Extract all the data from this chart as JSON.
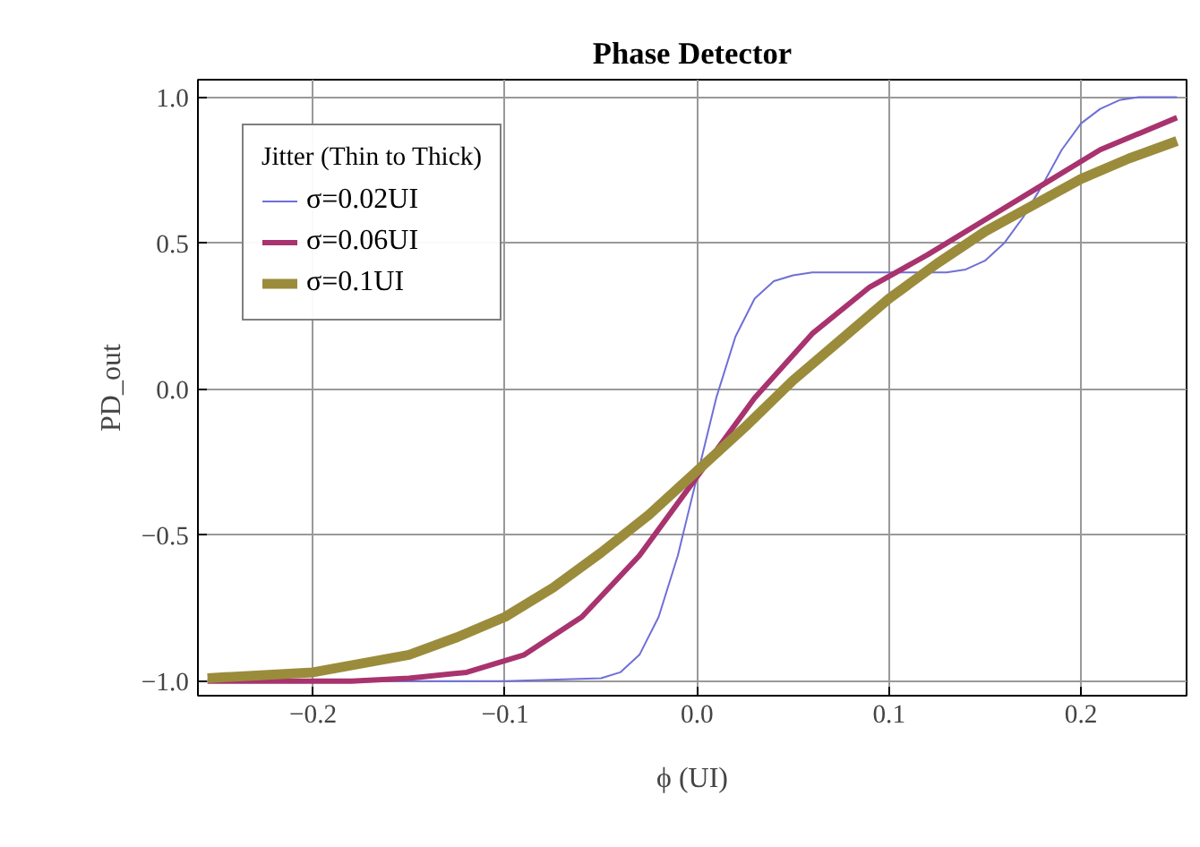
{
  "chart_data": {
    "type": "line",
    "title": "Phase Detector",
    "xlabel": "ϕ (UI)",
    "ylabel": "PD_out",
    "legend_title": "Jitter (Thin to Thick)",
    "xlim": [
      -0.26,
      0.255
    ],
    "ylim": [
      -1.05,
      1.06
    ],
    "xticks": [
      {
        "value": -0.2,
        "label": "−0.2"
      },
      {
        "value": -0.1,
        "label": "−0.1"
      },
      {
        "value": 0,
        "label": "0.0"
      },
      {
        "value": 0.1,
        "label": "0.1"
      },
      {
        "value": 0.2,
        "label": "0.2"
      }
    ],
    "yticks": [
      {
        "value": -1,
        "label": "−1.0"
      },
      {
        "value": -0.5,
        "label": "−0.5"
      },
      {
        "value": 0,
        "label": "0.0"
      },
      {
        "value": 0.5,
        "label": "0.5"
      },
      {
        "value": 1,
        "label": "1.0"
      }
    ],
    "grid": true,
    "legend": "top left",
    "line_style": "solid",
    "marker": "none",
    "series": [
      {
        "name": "σ=0.02UI",
        "color": "#6f6fd8",
        "x": [
          -0.255,
          -0.1,
          -0.05,
          -0.04,
          -0.03,
          -0.02,
          -0.01,
          0,
          0.01,
          0.02,
          0.03,
          0.04,
          0.05,
          0.06,
          0.1,
          0.13,
          0.14,
          0.15,
          0.16,
          0.17,
          0.18,
          0.19,
          0.2,
          0.21,
          0.22,
          0.23,
          0.25
        ],
        "values": [
          -1,
          -1,
          -0.99,
          -0.97,
          -0.91,
          -0.78,
          -0.57,
          -0.3,
          -0.03,
          0.18,
          0.31,
          0.37,
          0.39,
          0.4,
          0.4,
          0.4,
          0.41,
          0.44,
          0.5,
          0.59,
          0.7,
          0.82,
          0.91,
          0.96,
          0.99,
          1,
          1
        ]
      },
      {
        "name": "σ=0.06UI",
        "color": "#a8336e",
        "x": [
          -0.255,
          -0.2,
          -0.18,
          -0.15,
          -0.12,
          -0.09,
          -0.06,
          -0.03,
          0,
          0.03,
          0.06,
          0.09,
          0.12,
          0.15,
          0.18,
          0.21,
          0.25
        ],
        "values": [
          -1,
          -1,
          -1,
          -0.99,
          -0.97,
          -0.91,
          -0.78,
          -0.57,
          -0.3,
          -0.03,
          0.19,
          0.35,
          0.46,
          0.58,
          0.7,
          0.82,
          0.93
        ]
      },
      {
        "name": "σ=0.1UI",
        "color": "#9b8c3c",
        "x": [
          -0.255,
          -0.2,
          -0.15,
          -0.125,
          -0.1,
          -0.075,
          -0.05,
          -0.025,
          0,
          0.025,
          0.05,
          0.075,
          0.1,
          0.125,
          0.15,
          0.175,
          0.2,
          0.225,
          0.25
        ],
        "values": [
          -0.99,
          -0.97,
          -0.91,
          -0.85,
          -0.78,
          -0.68,
          -0.56,
          -0.43,
          -0.28,
          -0.13,
          0.03,
          0.17,
          0.31,
          0.43,
          0.54,
          0.63,
          0.72,
          0.79,
          0.85
        ]
      }
    ]
  }
}
